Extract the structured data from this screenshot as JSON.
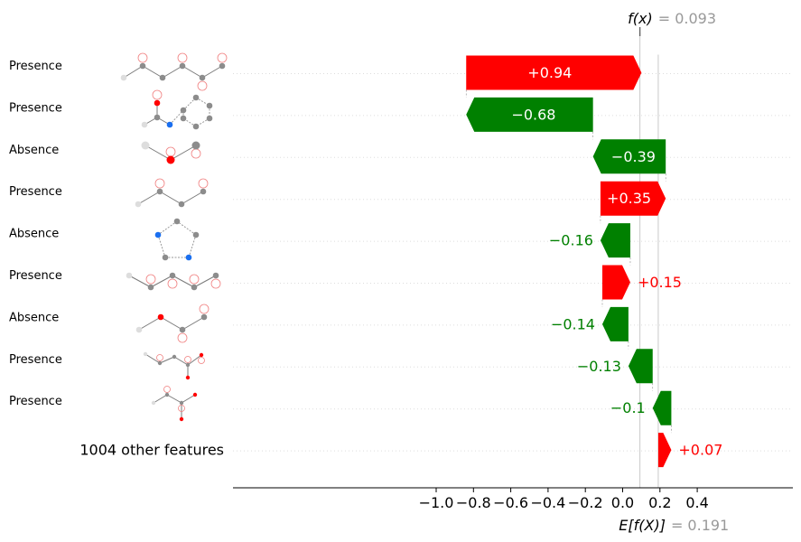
{
  "chart_data": {
    "type": "waterfall",
    "fx_label": "f(x)",
    "fx_value_text": "= 0.093",
    "fx_value": 0.093,
    "ex_label": "E[f(X)]",
    "ex_value_text": "= 0.191",
    "ex_value": 0.191,
    "xlim": [
      -1.05,
      0.45
    ],
    "xticks": [
      -1.0,
      -0.8,
      -0.6,
      -0.4,
      -0.2,
      0.0,
      0.2,
      0.4
    ],
    "xtick_labels": [
      "−1.0",
      "−0.8",
      "−0.6",
      "−0.4",
      "−0.2",
      "0.0",
      "0.2",
      "0.4"
    ],
    "colors": {
      "positive": "#ff0000",
      "negative": "#008000"
    },
    "features": [
      {
        "label": "Presence",
        "value": 0.94,
        "value_text": "+0.94"
      },
      {
        "label": "Presence",
        "value": -0.68,
        "value_text": "−0.68"
      },
      {
        "label": "Absence",
        "value": -0.39,
        "value_text": "−0.39"
      },
      {
        "label": "Presence",
        "value": 0.35,
        "value_text": "+0.35"
      },
      {
        "label": "Absence",
        "value": -0.16,
        "value_text": "−0.16"
      },
      {
        "label": "Presence",
        "value": 0.15,
        "value_text": "+0.15"
      },
      {
        "label": "Absence",
        "value": -0.14,
        "value_text": "−0.14"
      },
      {
        "label": "Presence",
        "value": -0.13,
        "value_text": "−0.13"
      },
      {
        "label": "Presence",
        "value": -0.1,
        "value_text": "−0.1"
      },
      {
        "label": "1004 other features",
        "value": 0.07,
        "value_text": "+0.07"
      }
    ]
  }
}
